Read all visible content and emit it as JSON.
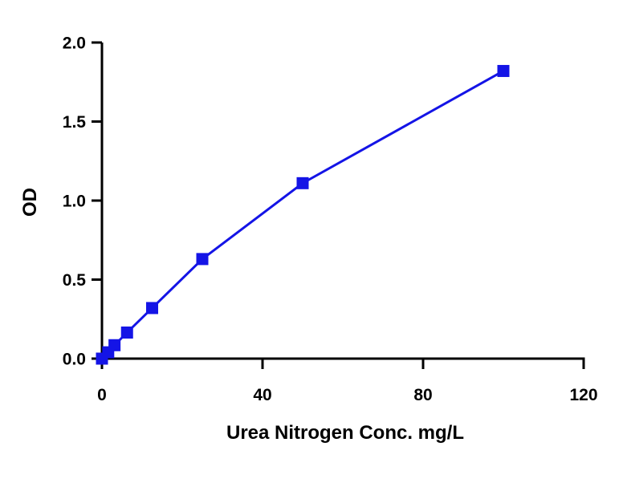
{
  "chart_data": {
    "type": "line",
    "title": "",
    "xlabel": "Urea Nitrogen Conc. mg/L",
    "ylabel": "OD",
    "xlim": [
      0,
      120
    ],
    "ylim": [
      0,
      2.0
    ],
    "xticks": [
      0,
      40,
      80,
      120
    ],
    "xtick_labels": [
      "0",
      "40",
      "80",
      "120"
    ],
    "yticks": [
      0,
      0.5,
      1.0,
      1.5,
      2.0
    ],
    "ytick_labels": [
      "0.0",
      "0.5",
      "1.0",
      "1.5",
      "2.0"
    ],
    "grid": false,
    "legend": false,
    "series": [
      {
        "x": [
          0,
          1.56,
          3.13,
          6.25,
          12.5,
          25,
          50,
          100
        ],
        "values": [
          0.0,
          0.04,
          0.085,
          0.165,
          0.32,
          0.63,
          1.11,
          1.82
        ],
        "color": "#1414e6",
        "marker": "square"
      }
    ]
  }
}
